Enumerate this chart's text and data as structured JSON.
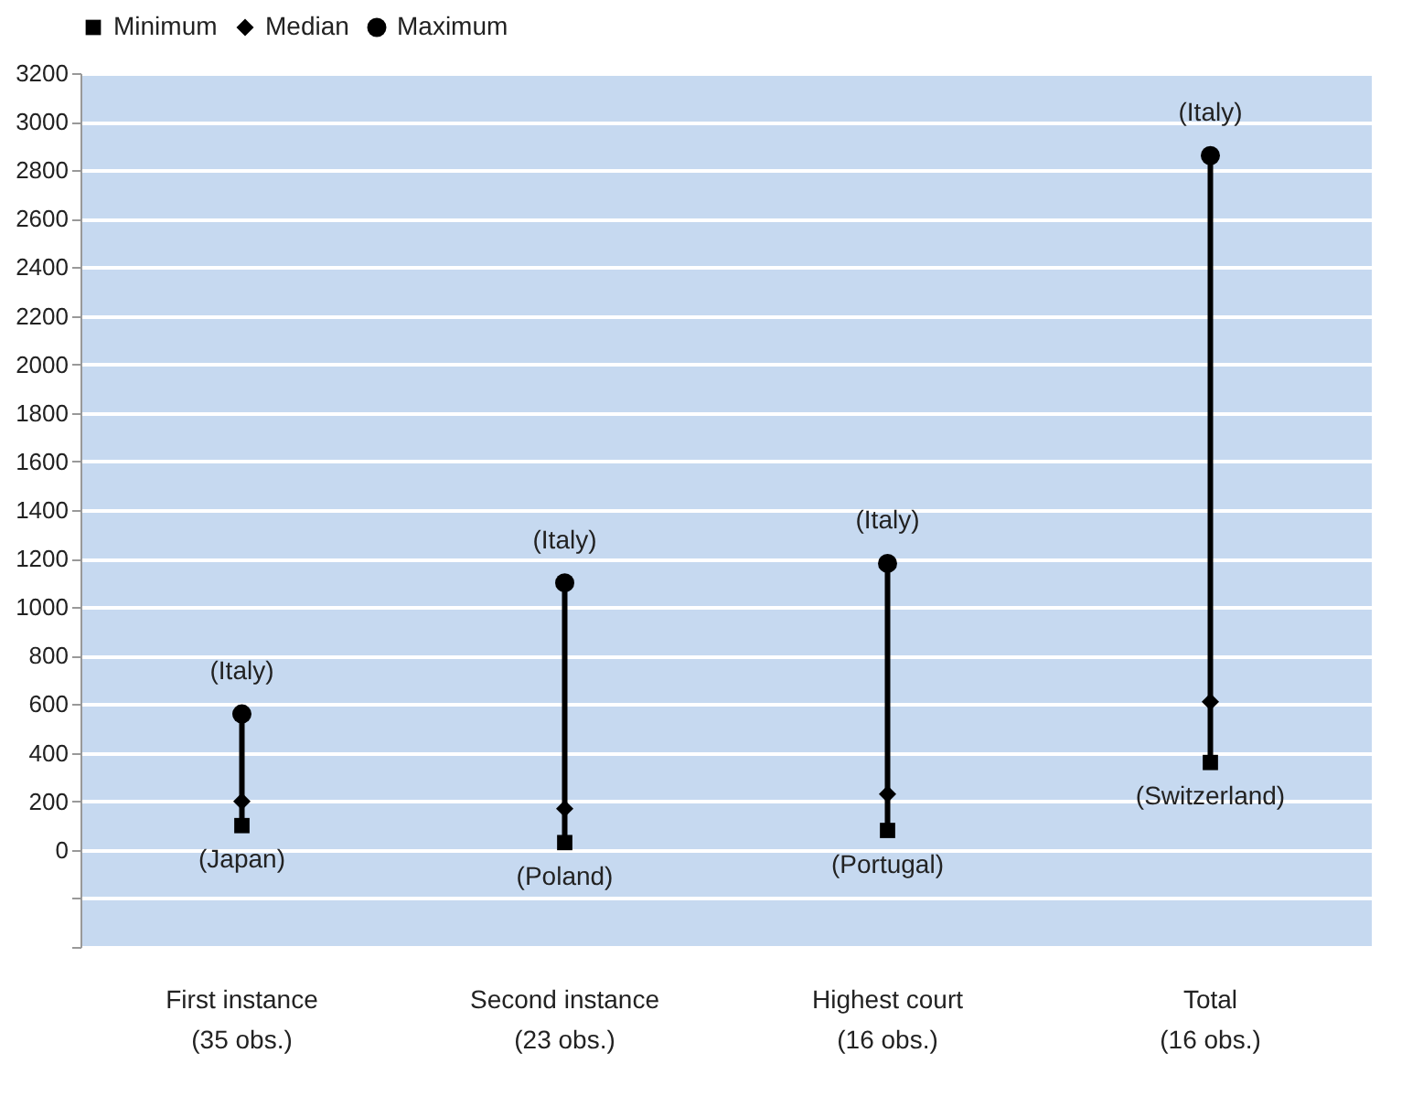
{
  "chart_data": {
    "type": "scatter",
    "categories": [
      "First instance\n(35 obs.)",
      "Second instance\n(23 obs.)",
      "Highest court\n(16 obs.)",
      "Total\n(16 obs.)"
    ],
    "series": [
      {
        "name": "Minimum",
        "color": "#000000",
        "marker": "square",
        "values": [
          100,
          30,
          80,
          360
        ]
      },
      {
        "name": "Median",
        "color": "#000000",
        "marker": "diamond",
        "values": [
          200,
          170,
          230,
          610
        ]
      },
      {
        "name": "Maximum",
        "color": "#000000",
        "marker": "circle",
        "values": [
          560,
          1100,
          1180,
          2860
        ]
      }
    ],
    "ylim": [
      -400,
      3200
    ],
    "yticks": [
      {
        "value": -400,
        "label": null
      },
      {
        "value": -200,
        "label": null
      },
      0,
      200,
      400,
      600,
      800,
      1000,
      1200,
      1400,
      1600,
      1800,
      2000,
      2200,
      2400,
      2600,
      2800,
      3000,
      3200
    ],
    "grid": "y",
    "legend": "top",
    "annotations": [
      {
        "text": "(Italy)",
        "x": "First instance\n(35 obs.)",
        "y": 560
      },
      {
        "text": "(Japan)",
        "x": "First instance\n(35 obs.)",
        "y": 100
      },
      {
        "text": "(Italy)",
        "x": "Second instance\n(23 obs.)",
        "y": 1100
      },
      {
        "text": "(Poland)",
        "x": "Second instance\n(23 obs.)",
        "y": 30
      },
      {
        "text": "(Italy)",
        "x": "Highest court\n(16 obs.)",
        "y": 1180
      },
      {
        "text": "(Portugal)",
        "x": "Highest court\n(16 obs.)",
        "y": 80
      },
      {
        "text": "(Italy)",
        "x": "Total\n(16 obs.)",
        "y": 2860
      },
      {
        "text": "(Switzerland)",
        "x": "Total\n(16 obs.)",
        "y": 360
      }
    ]
  }
}
